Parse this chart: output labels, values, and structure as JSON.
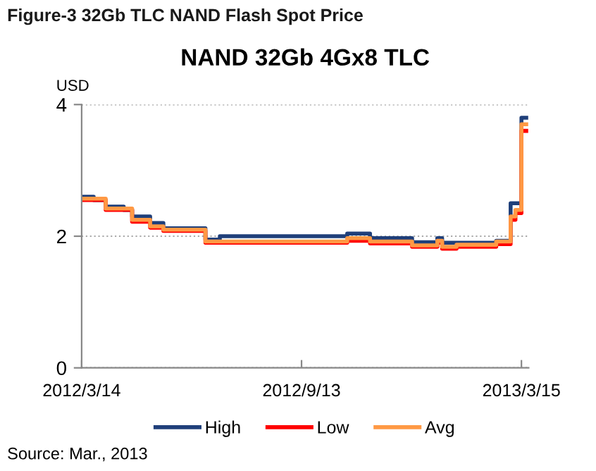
{
  "chart_data": {
    "type": "step",
    "title": "NAND 32Gb 4Gx8 TLC",
    "subtitle": "Figure-3 32Gb TLC NAND Flash Spot Price",
    "ylabel": "USD",
    "annotations": [
      "Source: Mar., 2013"
    ],
    "xlim": [
      "2012-03-14",
      "2013-03-21"
    ],
    "xticks": [
      {
        "value": "2012-03-14",
        "label": "2012/3/14"
      },
      {
        "value": "2012-09-13",
        "label": "2012/9/13"
      },
      {
        "value": "2013-03-15",
        "label": "2013/3/15"
      }
    ],
    "ylim": [
      0,
      4
    ],
    "yticks": [
      0,
      2,
      4
    ],
    "grid": "y",
    "legend": "bottom",
    "series": [
      {
        "name": "High",
        "color": "#1f3f7a",
        "x": [
          "2012-03-14",
          "2012-03-24",
          "2012-04-03",
          "2012-04-18",
          "2012-04-25",
          "2012-05-10",
          "2012-05-21",
          "2012-06-25",
          "2012-07-07",
          "2012-10-21",
          "2012-11-09",
          "2012-12-14",
          "2013-01-04",
          "2013-01-08",
          "2013-02-22",
          "2013-03-06",
          "2013-03-15",
          "2013-03-19"
        ],
        "values": [
          2.6,
          2.55,
          2.45,
          2.4,
          2.3,
          2.2,
          2.12,
          1.95,
          2.0,
          2.04,
          1.97,
          1.91,
          1.97,
          1.9,
          1.93,
          2.5,
          3.8,
          3.8
        ]
      },
      {
        "name": "Low",
        "color": "#ff0000",
        "x": [
          "2012-03-14",
          "2012-04-03",
          "2012-04-25",
          "2012-05-10",
          "2012-05-21",
          "2012-06-25",
          "2012-10-21",
          "2012-11-09",
          "2012-12-14",
          "2013-01-04",
          "2013-01-08",
          "2013-01-20",
          "2013-02-22",
          "2013-03-06",
          "2013-03-10",
          "2013-03-15",
          "2013-03-19"
        ],
        "values": [
          2.55,
          2.4,
          2.22,
          2.13,
          2.08,
          1.9,
          1.93,
          1.89,
          1.84,
          1.9,
          1.81,
          1.84,
          1.88,
          2.25,
          2.35,
          3.6,
          3.6
        ]
      },
      {
        "name": "Avg",
        "color": "#ff9944",
        "x": [
          "2012-03-14",
          "2012-04-03",
          "2012-04-25",
          "2012-05-10",
          "2012-05-21",
          "2012-06-25",
          "2012-10-21",
          "2012-11-09",
          "2012-12-14",
          "2013-01-04",
          "2013-01-08",
          "2013-01-20",
          "2013-02-22",
          "2013-03-06",
          "2013-03-10",
          "2013-03-15",
          "2013-03-19"
        ],
        "values": [
          2.57,
          2.42,
          2.25,
          2.15,
          2.1,
          1.92,
          1.97,
          1.92,
          1.86,
          1.93,
          1.84,
          1.87,
          1.92,
          2.3,
          2.4,
          3.7,
          3.7
        ]
      }
    ]
  }
}
